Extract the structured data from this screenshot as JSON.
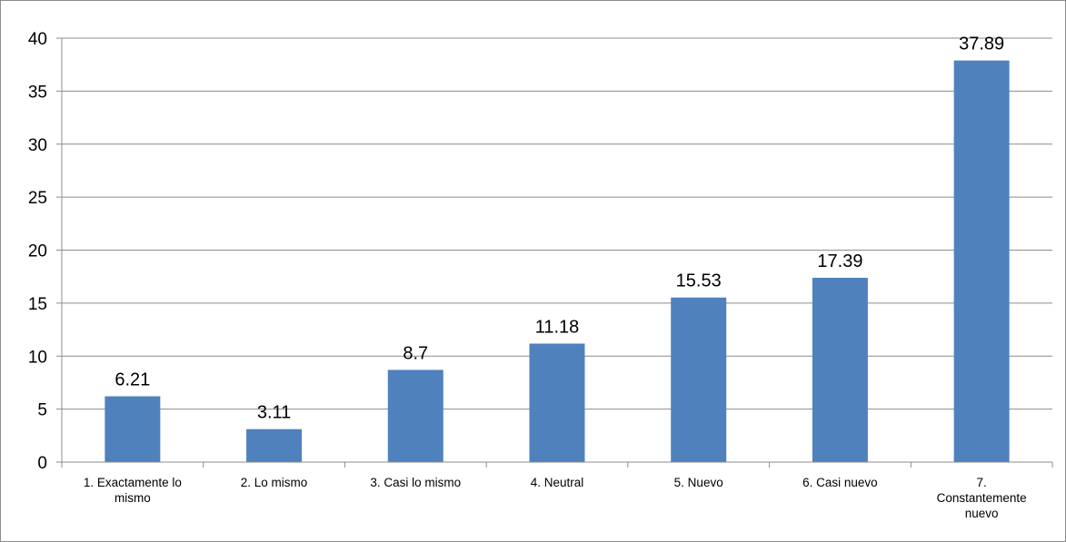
{
  "chart_data": {
    "type": "bar",
    "title": "",
    "xlabel": "",
    "ylabel": "",
    "ylim": [
      0,
      40
    ],
    "yticks": [
      0,
      5,
      10,
      15,
      20,
      25,
      30,
      35,
      40
    ],
    "grid": true,
    "legend": "none",
    "bar_color": "#4f81bd",
    "categories": [
      [
        "1.   Exactamente lo",
        "mismo"
      ],
      [
        "2.   Lo mismo"
      ],
      [
        "3.   Casi lo mismo"
      ],
      [
        "4.    Neutral"
      ],
      [
        "5.    Nuevo"
      ],
      [
        "6.   Casi nuevo"
      ],
      [
        "7.",
        "Constantemente",
        "nuevo"
      ]
    ],
    "values": [
      6.21,
      3.11,
      8.7,
      11.18,
      15.53,
      17.39,
      37.89
    ],
    "data_labels": [
      "6.21",
      "3.11",
      "8.7",
      "11.18",
      "15.53",
      "17.39",
      "37.89"
    ]
  }
}
